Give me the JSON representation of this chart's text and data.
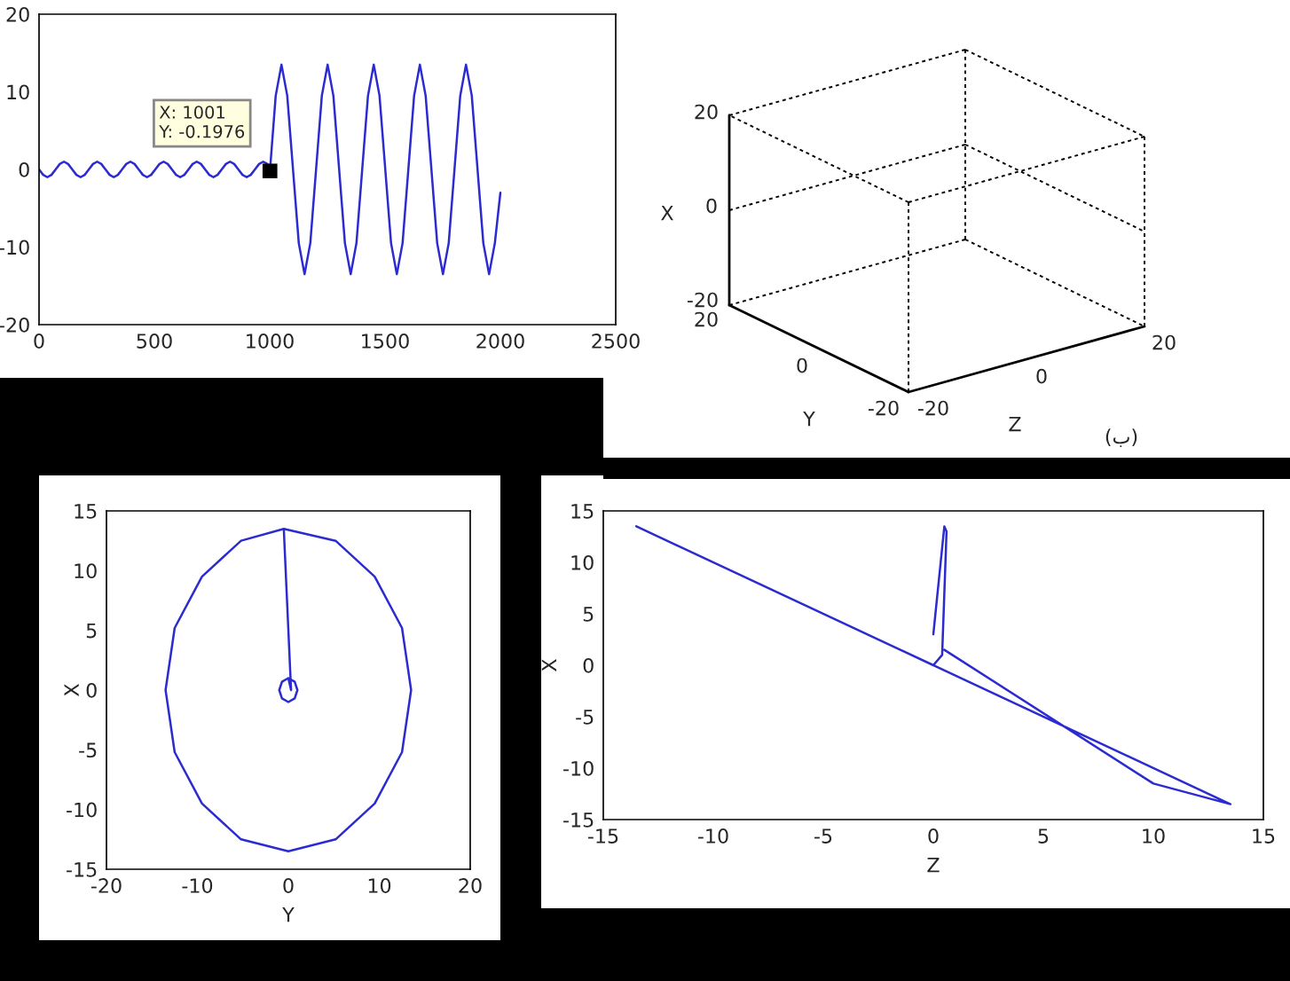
{
  "chart_data": [
    {
      "type": "line",
      "xlim": [
        0,
        2500
      ],
      "xticks": [
        0,
        500,
        1000,
        1500,
        2000,
        2500
      ],
      "ylim": [
        -20,
        20
      ],
      "yticks": [
        -20,
        -10,
        0,
        10,
        20
      ],
      "series": [
        {
          "color": "#2b2bd0",
          "x": [
            0,
            18,
            36,
            54,
            72,
            90,
            108,
            126,
            144,
            162,
            180,
            198,
            216,
            234,
            252,
            270,
            288,
            306,
            324,
            342,
            360,
            378,
            396,
            414,
            432,
            450,
            468,
            486,
            504,
            522,
            540,
            558,
            576,
            594,
            612,
            630,
            648,
            666,
            684,
            702,
            720,
            738,
            756,
            774,
            792,
            810,
            828,
            846,
            864,
            882,
            900,
            918,
            936,
            954,
            972,
            990,
            1001,
            1026,
            1051,
            1076,
            1101,
            1126,
            1151,
            1176,
            1201,
            1226,
            1251,
            1276,
            1301,
            1326,
            1351,
            1376,
            1401,
            1426,
            1451,
            1476,
            1501,
            1526,
            1551,
            1576,
            1601,
            1626,
            1651,
            1676,
            1701,
            1726,
            1751,
            1776,
            1801,
            1826,
            1851,
            1876,
            1901,
            1926,
            1951,
            1976,
            2000
          ],
          "values": [
            0,
            -0.7,
            -1,
            -0.7,
            0,
            0.7,
            1,
            0.7,
            0,
            -0.7,
            -1,
            -0.7,
            0,
            0.7,
            1,
            0.7,
            0,
            -0.7,
            -1,
            -0.7,
            0,
            0.7,
            1,
            0.7,
            0,
            -0.7,
            -1,
            -0.7,
            0,
            0.7,
            1,
            0.7,
            0,
            -0.7,
            -1,
            -0.7,
            0,
            0.7,
            1,
            0.7,
            0,
            -0.7,
            -1,
            -0.7,
            0,
            0.7,
            1,
            0.7,
            0,
            -0.7,
            -1,
            -0.7,
            0,
            0.7,
            1,
            0.7,
            -0.1976,
            9.5,
            13.5,
            9.5,
            0,
            -9.5,
            -13.5,
            -9.5,
            0,
            9.5,
            13.5,
            9.5,
            0,
            -9.5,
            -13.5,
            -9.5,
            0,
            9.5,
            13.5,
            9.5,
            0,
            -9.5,
            -13.5,
            -9.5,
            0,
            9.5,
            13.5,
            9.5,
            0,
            -9.5,
            -13.5,
            -9.5,
            0,
            9.5,
            13.5,
            9.5,
            0,
            -9.5,
            -13.5,
            -9.5,
            -3
          ]
        }
      ],
      "annotations": [
        {
          "text": "X: 1001\nY: -0.1976",
          "x": 1001,
          "y": -0.1976
        }
      ]
    },
    {
      "type": "other",
      "xlabel": "Z",
      "ylabel": "Y",
      "y2label": "X",
      "annotations": [
        "20",
        "0",
        "-20",
        "20",
        "0",
        "-20",
        "-20",
        "0",
        "20",
        "(ب)"
      ]
    },
    {
      "type": "line",
      "xlabel": "Y",
      "ylabel": "X",
      "xlim": [
        -20,
        20
      ],
      "xticks": [
        -20,
        -10,
        0,
        10,
        20
      ],
      "ylim": [
        -15,
        15
      ],
      "yticks": [
        -15,
        -10,
        -5,
        0,
        5,
        10,
        15
      ],
      "series": [
        {
          "color": "#2b2bd0",
          "x": [
            0,
            0.7,
            1,
            0.7,
            0,
            -0.7,
            -1,
            -0.7,
            0,
            0.3,
            -0.5,
            5.2,
            9.5,
            12.5,
            13.5,
            12.5,
            9.5,
            5.2,
            0,
            -5.2,
            -9.5,
            -12.5,
            -13.5,
            -12.5,
            -9.5,
            -5.2,
            -0.5
          ],
          "values": [
            1,
            0.7,
            0,
            -0.7,
            -1,
            -0.7,
            0,
            0.7,
            1,
            0,
            13.5,
            12.5,
            9.5,
            5.2,
            0,
            -5.2,
            -9.5,
            -12.5,
            -13.5,
            -12.5,
            -9.5,
            -5.2,
            0,
            5.2,
            9.5,
            12.5,
            13.5
          ]
        }
      ]
    },
    {
      "type": "line",
      "xlabel": "Z",
      "ylabel": "X",
      "xlim": [
        -15,
        15
      ],
      "xticks": [
        -15,
        -10,
        -5,
        0,
        5,
        10,
        15
      ],
      "ylim": [
        -15,
        15
      ],
      "yticks": [
        -15,
        -10,
        -5,
        0,
        5,
        10,
        15
      ],
      "series": [
        {
          "color": "#2b2bd0",
          "x": [
            0,
            0.5,
            0.6,
            0.4,
            0,
            -13.5,
            13.5,
            10,
            0.5
          ],
          "values": [
            3,
            13.5,
            13,
            1,
            0,
            13.5,
            -13.5,
            -11.5,
            1.5
          ]
        }
      ]
    }
  ]
}
